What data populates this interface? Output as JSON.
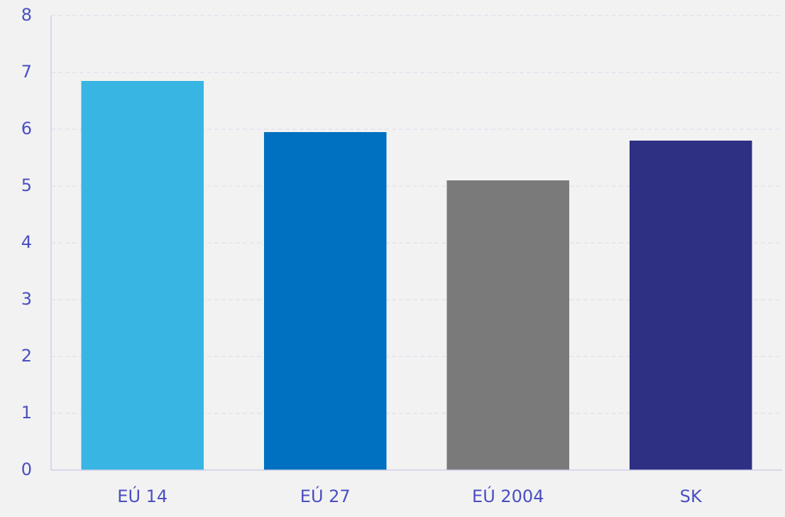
{
  "chart_data": {
    "type": "bar",
    "categories": [
      "EÚ 14",
      "EÚ 27",
      "EÚ 2004",
      "SK"
    ],
    "values": [
      6.85,
      5.95,
      5.1,
      5.8
    ],
    "colors": [
      "#38b5e3",
      "#0070c0",
      "#7a7a7a",
      "#2e3083"
    ],
    "ylim": [
      0,
      8
    ],
    "yticks": [
      0,
      1,
      2,
      3,
      4,
      5,
      6,
      7,
      8
    ],
    "grid": true
  }
}
